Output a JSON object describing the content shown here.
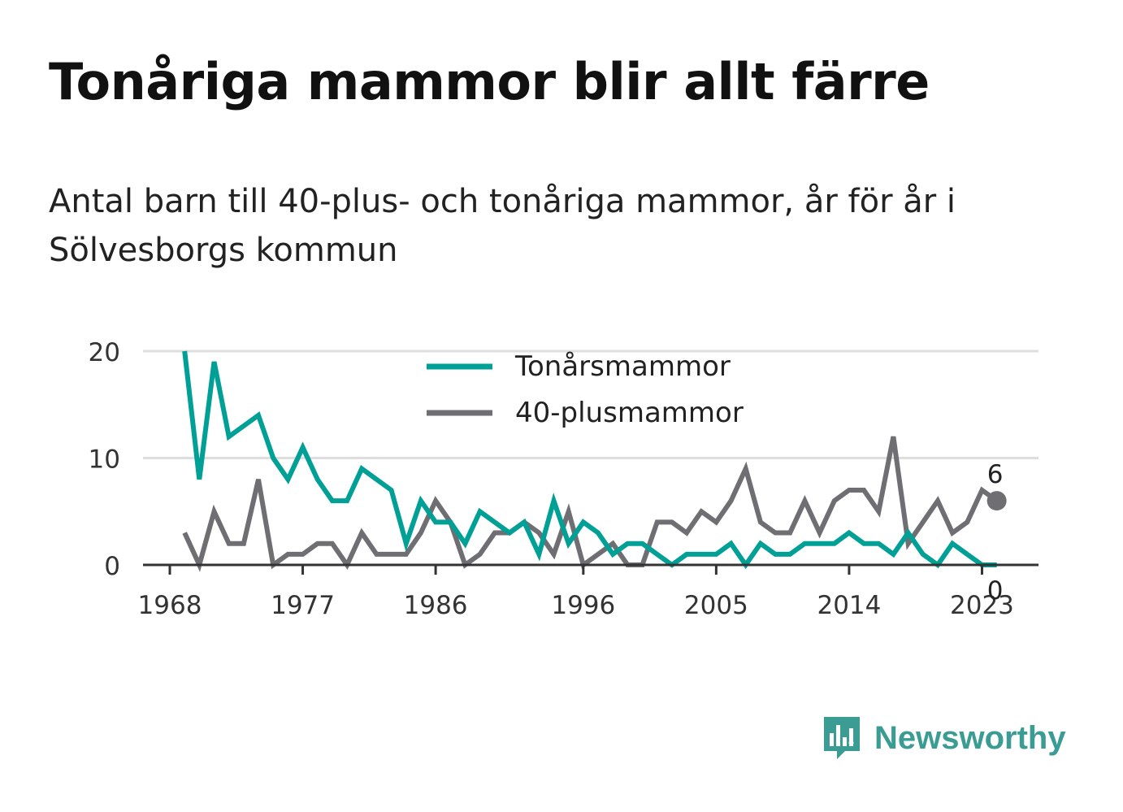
{
  "title": "Tonåriga mammor blir allt färre",
  "subtitle": "Antal barn till 40-plus- och tonåriga mammor, år för år i Sölvesborgs kommun",
  "brand": {
    "name": "Newsworthy",
    "color": "#3a9c93"
  },
  "chart_data": {
    "type": "line",
    "title": "Tonåriga mammor blir allt färre",
    "subtitle": "Antal barn till 40-plus- och tonåriga mammor, år för år i Sölvesborgs kommun",
    "xlabel": "",
    "ylabel": "",
    "x_ticks": [
      1968,
      1977,
      1986,
      1996,
      2005,
      2014,
      2023
    ],
    "y_ticks": [
      0,
      10,
      20
    ],
    "ylim": [
      0,
      20
    ],
    "grid": true,
    "legend_position": "top-center",
    "x": [
      1969,
      1970,
      1971,
      1972,
      1973,
      1974,
      1975,
      1976,
      1977,
      1978,
      1979,
      1980,
      1981,
      1982,
      1983,
      1984,
      1985,
      1986,
      1987,
      1988,
      1989,
      1990,
      1991,
      1992,
      1993,
      1994,
      1995,
      1996,
      1997,
      1998,
      1999,
      2000,
      2001,
      2002,
      2003,
      2004,
      2005,
      2006,
      2007,
      2008,
      2009,
      2010,
      2011,
      2012,
      2013,
      2014,
      2015,
      2016,
      2017,
      2018,
      2019,
      2020,
      2021,
      2022,
      2023,
      2024
    ],
    "series": [
      {
        "name": "Tonårsmammor",
        "color": "#00a096",
        "values": [
          20,
          8,
          19,
          12,
          13,
          14,
          10,
          8,
          11,
          8,
          6,
          6,
          9,
          8,
          7,
          2,
          6,
          4,
          4,
          2,
          5,
          4,
          3,
          4,
          1,
          6,
          2,
          4,
          3,
          1,
          2,
          2,
          1,
          0,
          1,
          1,
          1,
          2,
          0,
          2,
          1,
          1,
          2,
          2,
          2,
          3,
          2,
          2,
          1,
          3,
          1,
          0,
          2,
          1,
          0,
          0
        ],
        "end_label": "0"
      },
      {
        "name": "40-plusmammor",
        "color": "#6e6e73",
        "values": [
          3,
          0,
          5,
          2,
          2,
          8,
          0,
          1,
          1,
          2,
          2,
          0,
          3,
          1,
          1,
          1,
          3,
          6,
          4,
          0,
          1,
          3,
          3,
          4,
          3,
          1,
          5,
          0,
          1,
          2,
          0,
          0,
          4,
          4,
          3,
          5,
          4,
          6,
          9,
          4,
          3,
          3,
          6,
          3,
          6,
          7,
          7,
          5,
          12,
          2,
          4,
          6,
          3,
          4,
          7,
          6
        ],
        "end_label": "6"
      }
    ]
  }
}
